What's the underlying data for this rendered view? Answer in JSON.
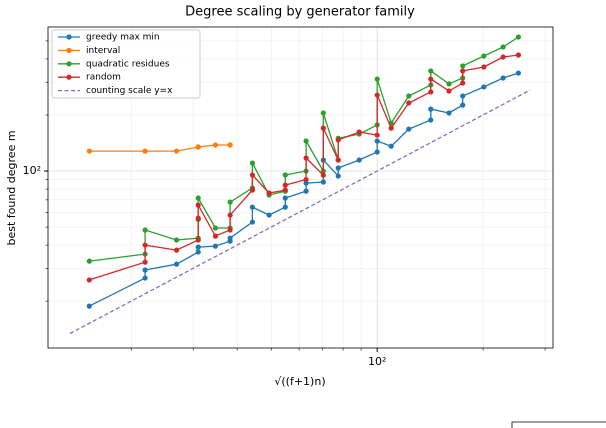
{
  "chart_data": {
    "type": "line",
    "title": "Degree scaling by generator family",
    "x_label": "√((f+1)n)",
    "y_label": "best found degree m",
    "x": [
      15.2,
      21.9,
      21.9,
      26.9,
      31.0,
      31.0,
      31.0,
      34.7,
      38.2,
      38.2,
      44.2,
      44.2,
      49.3,
      54.8,
      54.8,
      62.8,
      62.8,
      70.3,
      70.3,
      77.5,
      77.5,
      88.9,
      100,
      100,
      109.6,
      123,
      142,
      142,
      160,
      175,
      175,
      201,
      228,
      252
    ],
    "series": [
      {
        "name": "greedy max min",
        "color": "#1f77b4",
        "values": [
          18.8,
          26.6,
          29.4,
          31.6,
          36.7,
          39.0,
          39.0,
          39.5,
          42,
          43.6,
          53.2,
          64,
          58,
          64,
          71.6,
          78,
          86.1,
          87.3,
          114.6,
          94,
          103.8,
          114.6,
          126.5,
          145,
          136,
          168,
          188,
          215,
          205,
          226,
          253,
          283,
          316,
          336
        ]
      },
      {
        "name": "interval",
        "color": "#ff7f0e",
        "values": [
          128,
          128,
          128,
          128,
          134.6,
          134.6,
          134.6,
          138,
          138,
          138,
          null,
          null,
          null,
          null,
          null,
          null,
          null,
          null,
          null,
          null,
          null,
          null,
          null,
          null,
          null,
          null,
          null,
          null,
          null,
          null,
          null,
          null,
          null,
          null
        ]
      },
      {
        "name": "quadratic residues",
        "color": "#2ca02c",
        "values": [
          32.8,
          35.8,
          48.2,
          42.6,
          43.6,
          55,
          71.6,
          49.4,
          49.4,
          68.1,
          81.1,
          110.4,
          74.3,
          78,
          95.2,
          100,
          145,
          100,
          205,
          114.6,
          150,
          158,
          177,
          312,
          181,
          253,
          290,
          345,
          294,
          316,
          367,
          415,
          464,
          525
        ]
      },
      {
        "name": "random",
        "color": "#d62728",
        "values": [
          26,
          32.4,
          40,
          37.6,
          42.6,
          55.9,
          65.6,
          44.7,
          48.2,
          58,
          79,
          95.2,
          76.2,
          79,
          84,
          90,
          117.5,
          95,
          170,
          114.6,
          147,
          162,
          156,
          256,
          170,
          232,
          266,
          312,
          269,
          297,
          345,
          362,
          410,
          420
        ]
      },
      {
        "name": "counting scale y=x",
        "color": "#9467bd",
        "dashed": true,
        "x": [
          13.4,
          272
        ],
        "values": [
          13.4,
          272
        ]
      }
    ],
    "xlim": [
      11.6,
      316
    ],
    "ylim": [
      11.2,
      594
    ],
    "xlog": true,
    "ylog": true,
    "xticks": [
      {
        "value": 100,
        "label": "10²"
      }
    ],
    "yticks": [
      {
        "value": 100,
        "label": "10²"
      }
    ],
    "xminorticks": [
      20,
      30,
      40,
      50,
      60,
      70,
      80,
      90,
      200,
      300
    ],
    "yminorticks": [
      20,
      30,
      40,
      50,
      60,
      70,
      80,
      90,
      200,
      300,
      400,
      500
    ],
    "grid": true,
    "legend": "upper left"
  }
}
